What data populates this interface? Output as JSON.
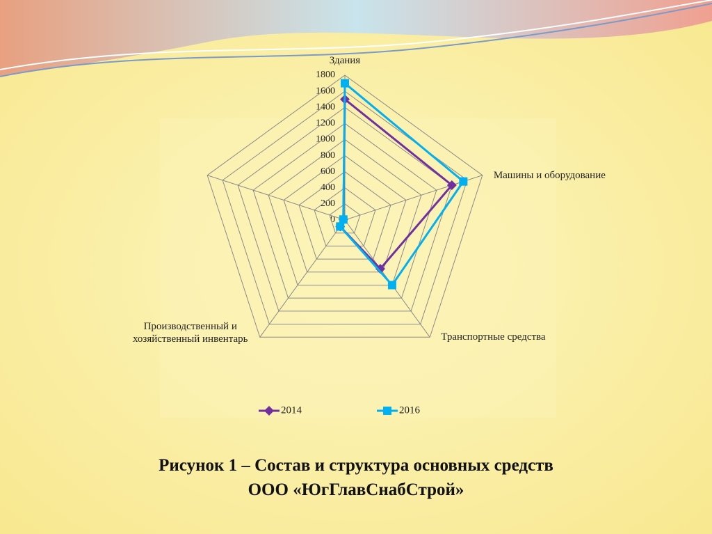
{
  "chart_data": {
    "type": "radar",
    "categories": [
      "Здания",
      "Машины и оборудование",
      "Транспортные средства",
      "Производственный и хозяйственный инвентарь",
      null
    ],
    "series": [
      {
        "name": "2014",
        "color": "#7030a0",
        "marker": "diamond",
        "values": [
          1500,
          1400,
          750,
          100,
          20
        ]
      },
      {
        "name": "2016",
        "color": "#00b0f0",
        "marker": "square",
        "values": [
          1700,
          1550,
          1000,
          100,
          20
        ]
      }
    ],
    "ylim": [
      0,
      1800
    ],
    "yticks": [
      0,
      200,
      400,
      600,
      800,
      1000,
      1200,
      1400,
      1600,
      1800
    ],
    "grid": true,
    "legend": "bottom"
  },
  "caption": [
    "Рисунок 1 – Состав и структура основных средств",
    "ООО «ЮгГлавСнабСтрой»"
  ]
}
